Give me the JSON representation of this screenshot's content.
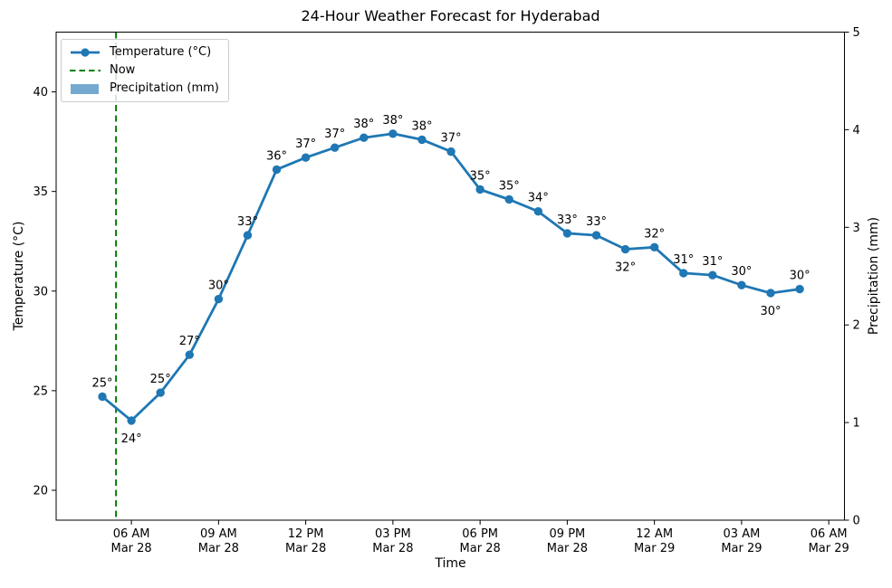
{
  "title": "24-Hour Weather Forecast for Hyderabad",
  "colors": {
    "temperature": "#1f77b4",
    "now": "#008000",
    "precipitation": "#76a9cf",
    "axis": "#000000",
    "text": "#000000",
    "background": "#ffffff",
    "legend_border": "#cccccc"
  },
  "legend": {
    "position": "upper left",
    "items": [
      {
        "label": "Temperature (°C)",
        "swatch": "line-with-marker"
      },
      {
        "label": "Now",
        "swatch": "dashed-line"
      },
      {
        "label": "Precipitation (mm)",
        "swatch": "filled-patch"
      }
    ]
  },
  "chart_data": {
    "type": "line",
    "title": "24-Hour Weather Forecast for Hyderabad",
    "xlabel": "Time",
    "ylabel_left": "Temperature (°C)",
    "ylabel_right": "Precipitation (mm)",
    "grid": false,
    "legend_position": "upper left",
    "x_axis": {
      "unit": "hours after 05:00 Mar 28",
      "lim": [
        -1.59,
        25.54
      ],
      "ticks": [
        {
          "hour": 1,
          "time": "06 AM",
          "date": "Mar 28"
        },
        {
          "hour": 4,
          "time": "09 AM",
          "date": "Mar 28"
        },
        {
          "hour": 7,
          "time": "12 PM",
          "date": "Mar 28"
        },
        {
          "hour": 10,
          "time": "03 PM",
          "date": "Mar 28"
        },
        {
          "hour": 13,
          "time": "06 PM",
          "date": "Mar 28"
        },
        {
          "hour": 16,
          "time": "09 PM",
          "date": "Mar 28"
        },
        {
          "hour": 19,
          "time": "12 AM",
          "date": "Mar 29"
        },
        {
          "hour": 22,
          "time": "03 AM",
          "date": "Mar 29"
        },
        {
          "hour": 25,
          "time": "06 AM",
          "date": "Mar 29"
        }
      ]
    },
    "y_left": {
      "ticks": [
        20,
        25,
        30,
        35,
        40
      ],
      "lim": [
        18.5,
        43.0
      ]
    },
    "y_right": {
      "ticks": [
        0,
        1,
        2,
        3,
        4,
        5
      ],
      "lim": [
        0,
        5
      ]
    },
    "now_marker": {
      "label": "Now",
      "hour": 0.47,
      "style": "dashed-vertical"
    },
    "series": [
      {
        "name": "Temperature (°C)",
        "type": "line",
        "axis": "left",
        "x_hours": [
          0,
          1,
          2,
          3,
          4,
          5,
          6,
          7,
          8,
          9,
          10,
          11,
          12,
          13,
          14,
          15,
          16,
          17,
          18,
          19,
          20,
          21,
          22,
          23,
          24
        ],
        "values": [
          24.7,
          23.5,
          24.9,
          26.8,
          29.6,
          32.8,
          36.1,
          36.7,
          37.2,
          37.7,
          37.9,
          37.6,
          37.0,
          35.1,
          34.6,
          34.0,
          32.9,
          32.8,
          32.1,
          32.2,
          30.9,
          30.8,
          30.3,
          29.9,
          30.1
        ],
        "point_labels": [
          "25°",
          "24°",
          "25°",
          "27°",
          "30°",
          "33°",
          "36°",
          "37°",
          "37°",
          "38°",
          "38°",
          "38°",
          "37°",
          "35°",
          "35°",
          "34°",
          "33°",
          "33°",
          "32°",
          "32°",
          "31°",
          "31°",
          "30°",
          "30°",
          "30°"
        ],
        "labels_below_indices": [
          1,
          18,
          23
        ]
      },
      {
        "name": "Precipitation (mm)",
        "type": "bar",
        "axis": "right",
        "x_hours": [
          0,
          1,
          2,
          3,
          4,
          5,
          6,
          7,
          8,
          9,
          10,
          11,
          12,
          13,
          14,
          15,
          16,
          17,
          18,
          19,
          20,
          21,
          22,
          23,
          24
        ],
        "values": [
          0,
          0,
          0,
          0,
          0,
          0,
          0,
          0,
          0,
          0,
          0,
          0,
          0,
          0,
          0,
          0,
          0,
          0,
          0,
          0,
          0,
          0,
          0,
          0,
          0
        ]
      }
    ]
  }
}
